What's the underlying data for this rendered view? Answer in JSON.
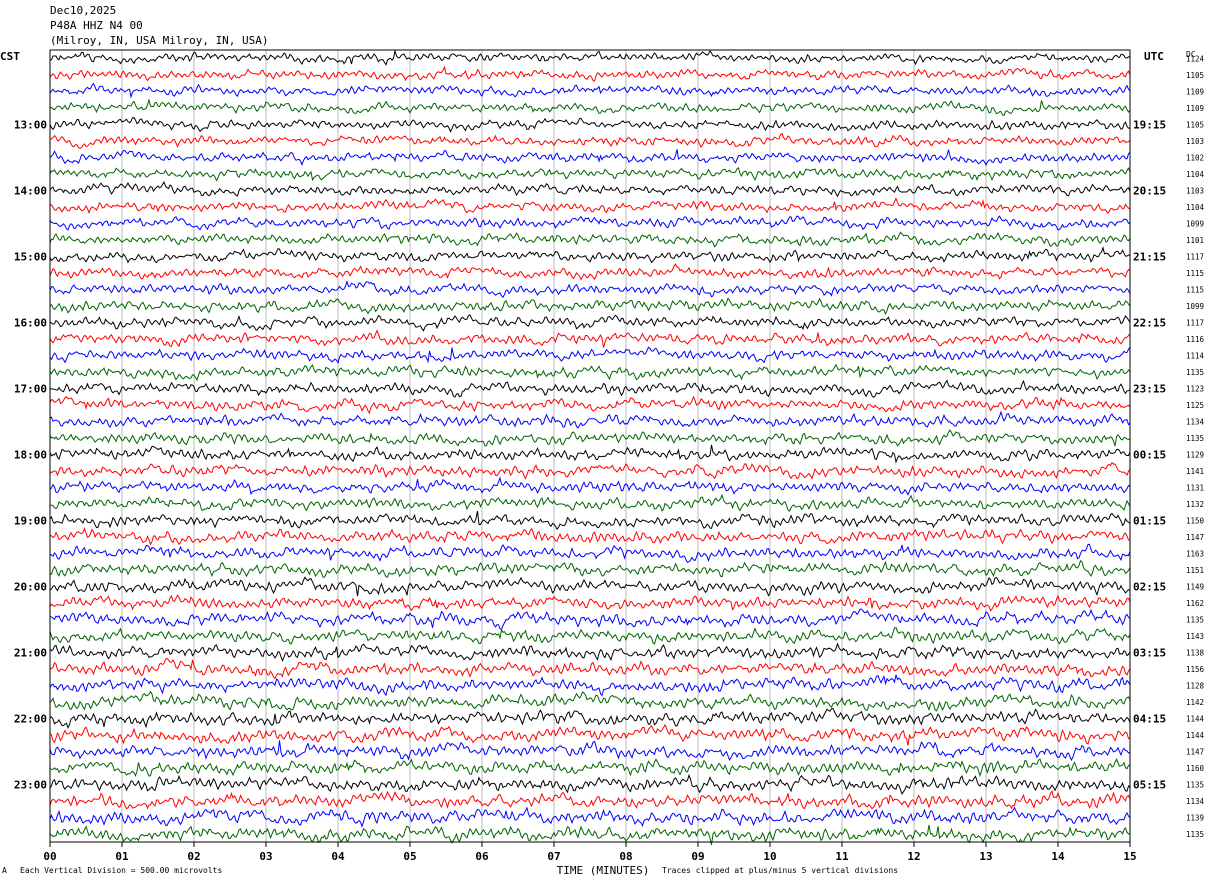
{
  "header": {
    "date": "Dec10,2025",
    "station": "P48A HHZ N4 00",
    "location": "(Milroy, IN, USA Milroy, IN, USA)"
  },
  "left_axis_label": "CST",
  "right_axis_label": "UTC",
  "dc_label": "DC",
  "footer": {
    "scale_note": "Each Vertical Division =  500.00 microvolts",
    "clip_note": "Traces clipped at plus/minus 5 vertical divisions",
    "corner_mark": "A"
  },
  "chart_data": {
    "type": "line",
    "xlabel": "TIME (MINUTES)",
    "xlim": [
      0,
      15
    ],
    "x_ticks": [
      "00",
      "01",
      "02",
      "03",
      "04",
      "05",
      "06",
      "07",
      "08",
      "09",
      "10",
      "11",
      "12",
      "13",
      "14",
      "15"
    ],
    "trace_colors": [
      "#000000",
      "#ff0000",
      "#0000ff",
      "#006400"
    ],
    "rows": 48,
    "left_time_labels": [
      {
        "row": 4,
        "label": "13:00"
      },
      {
        "row": 8,
        "label": "14:00"
      },
      {
        "row": 12,
        "label": "15:00"
      },
      {
        "row": 16,
        "label": "16:00"
      },
      {
        "row": 20,
        "label": "17:00"
      },
      {
        "row": 24,
        "label": "18:00"
      },
      {
        "row": 28,
        "label": "19:00"
      },
      {
        "row": 32,
        "label": "20:00"
      },
      {
        "row": 36,
        "label": "21:00"
      },
      {
        "row": 40,
        "label": "22:00"
      },
      {
        "row": 44,
        "label": "23:00"
      }
    ],
    "right_time_labels": [
      {
        "row": 4,
        "label": "19:15"
      },
      {
        "row": 8,
        "label": "20:15"
      },
      {
        "row": 12,
        "label": "21:15"
      },
      {
        "row": 16,
        "label": "22:15"
      },
      {
        "row": 20,
        "label": "23:15"
      },
      {
        "row": 24,
        "label": "00:15"
      },
      {
        "row": 28,
        "label": "01:15"
      },
      {
        "row": 32,
        "label": "02:15"
      },
      {
        "row": 36,
        "label": "03:15"
      },
      {
        "row": 40,
        "label": "04:15"
      },
      {
        "row": 44,
        "label": "05:15"
      }
    ],
    "dc_offsets": [
      "1124",
      "1105",
      "1109",
      "1109",
      "1105",
      "1103",
      "1102",
      "1104",
      "1103",
      "1104",
      "1099",
      "1101",
      "1117",
      "1115",
      "1115",
      "1099",
      "1117",
      "1116",
      "1114",
      "1135",
      "1123",
      "1125",
      "1134",
      "1135",
      "1129",
      "1141",
      "1131",
      "1132",
      "1150",
      "1147",
      "1163",
      "1151",
      "1149",
      "1162",
      "1135",
      "1143",
      "1138",
      "1156",
      "1128",
      "1142",
      "1144",
      "1144",
      "1147",
      "1160",
      "1135",
      "1134",
      "1139",
      "1135"
    ]
  }
}
